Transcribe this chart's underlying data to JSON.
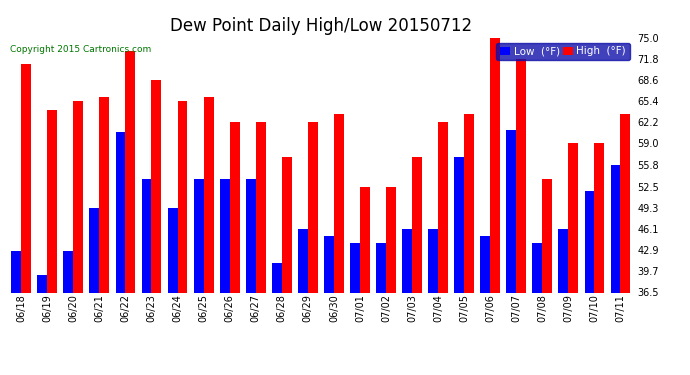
{
  "title": "Dew Point Daily High/Low 20150712",
  "copyright": "Copyright 2015 Cartronics.com",
  "legend_low": "Low  (°F)",
  "legend_high": "High  (°F)",
  "dates": [
    "06/18",
    "06/19",
    "06/20",
    "06/21",
    "06/22",
    "06/23",
    "06/24",
    "06/25",
    "06/26",
    "06/27",
    "06/28",
    "06/29",
    "06/30",
    "07/01",
    "07/02",
    "07/03",
    "07/04",
    "07/05",
    "07/06",
    "07/07",
    "07/08",
    "07/09",
    "07/10",
    "07/11"
  ],
  "high": [
    71.0,
    64.0,
    65.4,
    66.0,
    73.0,
    68.6,
    65.4,
    66.0,
    62.2,
    62.2,
    57.0,
    62.2,
    63.5,
    52.5,
    52.5,
    57.0,
    62.2,
    63.5,
    75.0,
    71.8,
    53.6,
    59.0,
    59.0,
    63.5
  ],
  "low": [
    42.8,
    39.2,
    42.8,
    49.3,
    60.8,
    53.6,
    49.3,
    53.6,
    53.6,
    53.6,
    41.0,
    46.1,
    45.0,
    44.0,
    44.0,
    46.1,
    46.1,
    57.0,
    45.0,
    61.0,
    44.0,
    46.1,
    51.8,
    55.8
  ],
  "ylim_min": 36.5,
  "ylim_max": 75.0,
  "yticks": [
    36.5,
    39.7,
    42.9,
    46.1,
    49.3,
    52.5,
    55.8,
    59.0,
    62.2,
    65.4,
    68.6,
    71.8,
    75.0
  ],
  "bar_width": 0.38,
  "high_color": "#FF0000",
  "low_color": "#0000FF",
  "bg_color": "#FFFFFF",
  "grid_color": "#AAAAAA",
  "title_fontsize": 12,
  "tick_fontsize": 7,
  "legend_fontsize": 7.5,
  "copyright_color": "#007700"
}
